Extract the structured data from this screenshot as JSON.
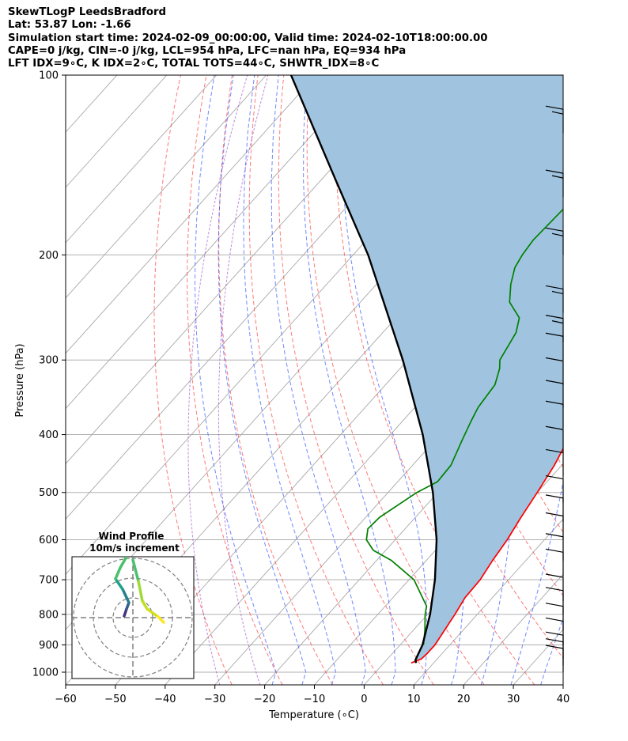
{
  "header": {
    "line1": "SkewTLogP LeedsBradford",
    "line2": "Lat: 53.87   Lon: -1.66",
    "line3": "Simulation start time: 2024-02-09_00:00:00, Valid time: 2024-02-10T18:00:00.00",
    "line4": "CAPE=0 j/kg, CIN=-0 j/kg, LCL=954 hPa, LFC=nan hPa, EQ=934 hPa",
    "line5": "LFT IDX=9∘C, K IDX=2∘C, TOTAL TOTS=44∘C, SHWTR_IDX=8∘C"
  },
  "chart_data": {
    "type": "line",
    "xlabel": "Temperature (∘C)",
    "ylabel": "Pressure (hPa)",
    "xlim": [
      -60,
      40
    ],
    "ylim_hpa": [
      1050,
      100
    ],
    "y_scale": "log",
    "skew": true,
    "grid": true,
    "x_ticks": [
      -60,
      -50,
      -40,
      -30,
      -20,
      -10,
      0,
      10,
      20,
      30,
      40
    ],
    "y_ticks": [
      1000,
      900,
      800,
      700,
      600,
      500,
      400,
      300,
      200,
      100
    ],
    "series": [
      {
        "role": "temperature",
        "color": "#ff0000",
        "points": [
          [
            965,
            5.5
          ],
          [
            950,
            6.8
          ],
          [
            930,
            7
          ],
          [
            900,
            7
          ],
          [
            800,
            5.5
          ],
          [
            750,
            4.5
          ],
          [
            700,
            4.3
          ],
          [
            650,
            3.3
          ],
          [
            600,
            2.5
          ],
          [
            550,
            1.2
          ],
          [
            500,
            0
          ],
          [
            450,
            -1.5
          ],
          [
            400,
            -3.8
          ],
          [
            370,
            -5.5
          ],
          [
            340,
            -7
          ],
          [
            310,
            -8.8
          ],
          [
            285,
            -10.2
          ],
          [
            270,
            -11
          ],
          [
            255,
            -10.8
          ],
          [
            240,
            -8.5
          ],
          [
            226,
            -6.2
          ],
          [
            207,
            -3.3
          ],
          [
            196,
            -1.6
          ],
          [
            173,
            -0.5
          ],
          [
            160,
            -0.6
          ],
          [
            150,
            -0.8
          ],
          [
            137,
            -1.6
          ],
          [
            122,
            -3.6
          ],
          [
            100,
            -9.5
          ]
        ]
      },
      {
        "role": "dewpoint",
        "color": "#008000",
        "points": [
          [
            900,
            4.7
          ],
          [
            850,
            2.3
          ],
          [
            800,
            -0.5
          ],
          [
            775,
            -1.7
          ],
          [
            700,
            -9
          ],
          [
            650,
            -17
          ],
          [
            625,
            -22.5
          ],
          [
            600,
            -25.8
          ],
          [
            575,
            -27.5
          ],
          [
            550,
            -27.2
          ],
          [
            500,
            -24.2
          ],
          [
            480,
            -22
          ],
          [
            450,
            -22.3
          ],
          [
            410,
            -24.5
          ],
          [
            380,
            -26.2
          ],
          [
            360,
            -27.3
          ],
          [
            330,
            -28
          ],
          [
            310,
            -30
          ],
          [
            300,
            -31.5
          ],
          [
            270,
            -33.2
          ],
          [
            255,
            -35.2
          ],
          [
            240,
            -40
          ],
          [
            224,
            -43
          ],
          [
            210,
            -45.2
          ],
          [
            200,
            -46
          ],
          [
            189,
            -46.5
          ],
          [
            165,
            -46
          ],
          [
            150,
            -44
          ],
          [
            130,
            -38
          ],
          [
            100,
            -29.5
          ]
        ]
      },
      {
        "role": "parcel",
        "color": "#000000",
        "points": [
          [
            965,
            6.5
          ],
          [
            954,
            5.8
          ],
          [
            900,
            4.5
          ],
          [
            800,
            0.5
          ],
          [
            700,
            -4.8
          ],
          [
            600,
            -11.7
          ],
          [
            500,
            -21
          ],
          [
            400,
            -33.5
          ],
          [
            300,
            -51
          ],
          [
            200,
            -77
          ],
          [
            150,
            -97
          ],
          [
            100,
            -125
          ]
        ]
      }
    ],
    "wind_barbs": {
      "note": "wind barbs along right edge, pressure levels from ~1000 to ~100 hPa"
    },
    "inset": {
      "title_line1": "Wind Profile",
      "title_line2": "10m/s increment",
      "rings": 3
    }
  }
}
